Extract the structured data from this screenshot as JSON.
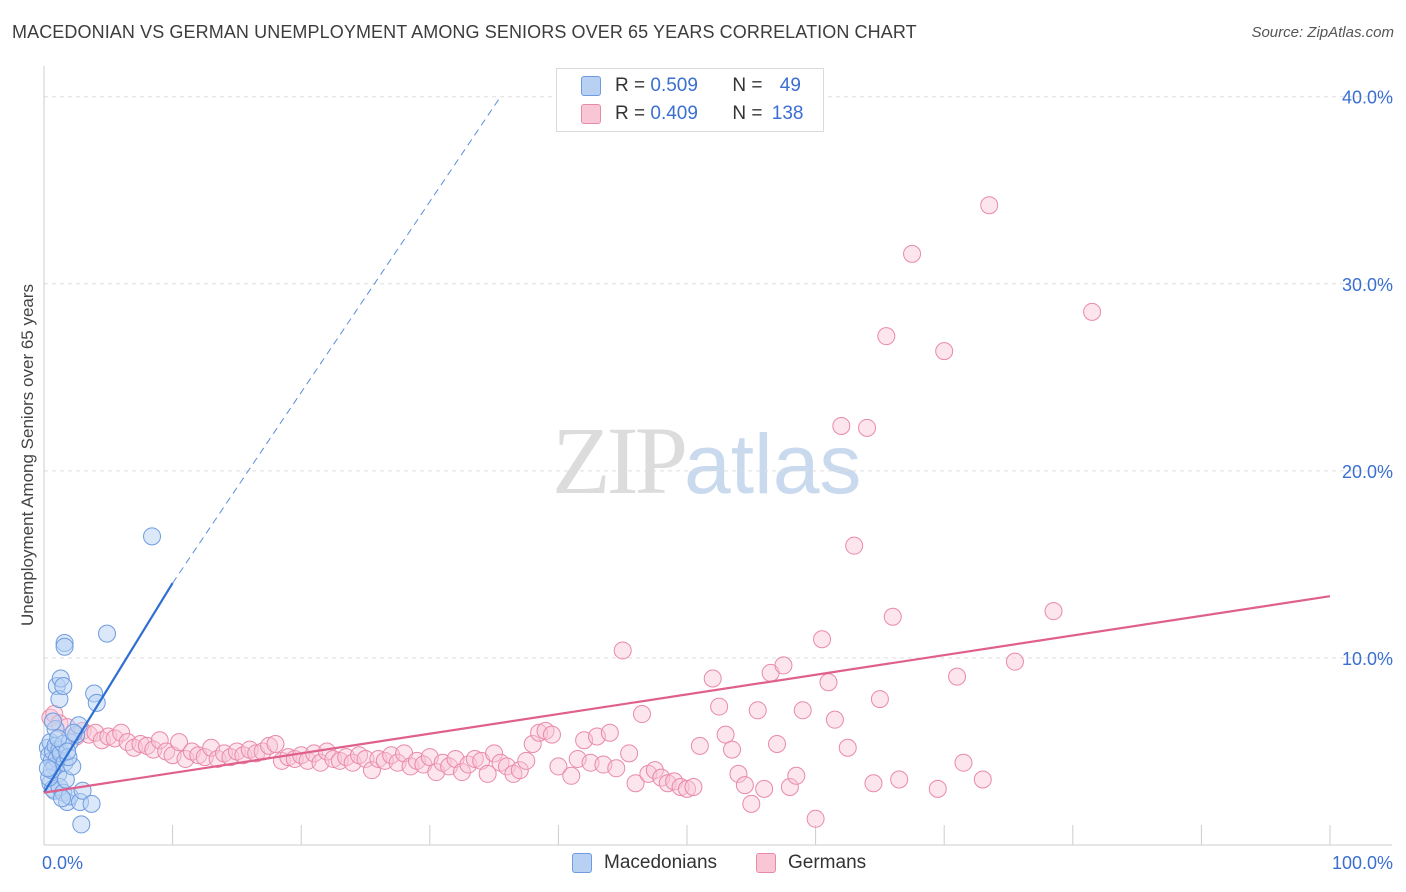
{
  "header": {
    "title": "MACEDONIAN VS GERMAN UNEMPLOYMENT AMONG SENIORS OVER 65 YEARS CORRELATION CHART",
    "source": "Source: ZipAtlas.com"
  },
  "legend": {
    "row1": {
      "r_label": "R = ",
      "r_value": "0.509",
      "n_label": "N = ",
      "n_value": "49"
    },
    "row2": {
      "r_label": "R = ",
      "r_value": "0.409",
      "n_label": "N = ",
      "n_value": "138"
    }
  },
  "watermark": {
    "zip": "ZIP",
    "atlas": "atlas"
  },
  "colors": {
    "blue_fill": "#b8d1f3",
    "blue_stroke": "#6f9be0",
    "blue_line": "#2f6fd1",
    "pink_fill": "#f9c6d6",
    "pink_stroke": "#e98aa8",
    "pink_line": "#e0608c",
    "axis_text": "#3a6fd1",
    "grid": "#dddddd"
  },
  "chart_data": {
    "type": "scatter",
    "title": "MACEDONIAN VS GERMAN UNEMPLOYMENT AMONG SENIORS OVER 65 YEARS CORRELATION CHART",
    "xlabel": "",
    "ylabel": "Unemployment Among Seniors over 65 years",
    "xlim": [
      0,
      100
    ],
    "ylim": [
      0,
      41
    ],
    "x_tick_labels": {
      "left": "0.0%",
      "right": "100.0%"
    },
    "y_ticks": [
      10,
      20,
      30,
      40
    ],
    "y_tick_labels": [
      "10.0%",
      "20.0%",
      "30.0%",
      "40.0%"
    ],
    "series": [
      {
        "name": "Macedonians",
        "trend": {
          "x0": 0,
          "y0": 2.8,
          "x1": 10,
          "y1": 14.0,
          "extend_to_x": 35.5,
          "extend_to_y": 40.0
        },
        "points": [
          [
            0.3,
            5.2
          ],
          [
            0.4,
            4.8
          ],
          [
            0.5,
            5.5
          ],
          [
            0.6,
            4.5
          ],
          [
            0.7,
            5.0
          ],
          [
            0.8,
            4.2
          ],
          [
            0.9,
            5.3
          ],
          [
            1.0,
            4.6
          ],
          [
            1.1,
            3.8
          ],
          [
            1.2,
            5.1
          ],
          [
            1.3,
            4.9
          ],
          [
            1.5,
            5.4
          ],
          [
            1.6,
            4.4
          ],
          [
            0.5,
            3.3
          ],
          [
            0.7,
            3.0
          ],
          [
            0.8,
            2.9
          ],
          [
            1.2,
            3.1
          ],
          [
            1.5,
            2.8
          ],
          [
            1.7,
            3.5
          ],
          [
            0.9,
            6.2
          ],
          [
            0.7,
            6.6
          ],
          [
            1.0,
            8.5
          ],
          [
            1.2,
            7.8
          ],
          [
            1.3,
            8.9
          ],
          [
            1.5,
            8.5
          ],
          [
            1.6,
            10.8
          ],
          [
            1.6,
            10.6
          ],
          [
            1.8,
            2.3
          ],
          [
            2.0,
            2.6
          ],
          [
            2.2,
            4.2
          ],
          [
            2.0,
            5.5
          ],
          [
            2.5,
            5.9
          ],
          [
            2.7,
            6.4
          ],
          [
            2.8,
            2.3
          ],
          [
            3.0,
            2.9
          ],
          [
            2.9,
            1.1
          ],
          [
            3.7,
            2.2
          ],
          [
            3.9,
            8.1
          ],
          [
            4.1,
            7.6
          ],
          [
            4.9,
            11.3
          ],
          [
            8.4,
            16.5
          ],
          [
            0.4,
            3.6
          ],
          [
            0.6,
            4.0
          ],
          [
            1.4,
            2.5
          ],
          [
            1.9,
            4.7
          ],
          [
            0.3,
            4.1
          ],
          [
            1.1,
            5.7
          ],
          [
            1.8,
            5.0
          ],
          [
            2.3,
            6.0
          ]
        ]
      },
      {
        "name": "Germans",
        "trend": {
          "x0": 0,
          "y0": 2.8,
          "x1": 100,
          "y1": 13.3
        },
        "points": [
          [
            0.5,
            6.8
          ],
          [
            0.8,
            7.0
          ],
          [
            1.2,
            6.5
          ],
          [
            1.8,
            6.3
          ],
          [
            2.5,
            5.8
          ],
          [
            3.0,
            6.1
          ],
          [
            3.5,
            5.9
          ],
          [
            4.0,
            6.0
          ],
          [
            4.5,
            5.6
          ],
          [
            5.0,
            5.8
          ],
          [
            5.5,
            5.7
          ],
          [
            6.0,
            6.0
          ],
          [
            6.5,
            5.5
          ],
          [
            7.0,
            5.2
          ],
          [
            7.5,
            5.4
          ],
          [
            8.0,
            5.3
          ],
          [
            8.5,
            5.1
          ],
          [
            9.0,
            5.6
          ],
          [
            9.5,
            5.0
          ],
          [
            10.0,
            4.8
          ],
          [
            10.5,
            5.5
          ],
          [
            11.0,
            4.6
          ],
          [
            11.5,
            5.0
          ],
          [
            12.0,
            4.8
          ],
          [
            12.5,
            4.7
          ],
          [
            13.0,
            5.2
          ],
          [
            13.5,
            4.6
          ],
          [
            14.0,
            4.9
          ],
          [
            14.5,
            4.7
          ],
          [
            15.0,
            5.0
          ],
          [
            15.5,
            4.8
          ],
          [
            16.0,
            5.1
          ],
          [
            16.5,
            4.9
          ],
          [
            17.0,
            5.0
          ],
          [
            17.5,
            5.3
          ],
          [
            18.0,
            5.4
          ],
          [
            18.5,
            4.5
          ],
          [
            19.0,
            4.7
          ],
          [
            19.5,
            4.6
          ],
          [
            20.0,
            4.8
          ],
          [
            20.5,
            4.5
          ],
          [
            21.0,
            4.9
          ],
          [
            21.5,
            4.4
          ],
          [
            22.0,
            5.0
          ],
          [
            22.5,
            4.6
          ],
          [
            23.0,
            4.5
          ],
          [
            23.5,
            4.7
          ],
          [
            24.0,
            4.4
          ],
          [
            24.5,
            4.8
          ],
          [
            25.0,
            4.6
          ],
          [
            25.5,
            4.0
          ],
          [
            26.0,
            4.6
          ],
          [
            26.5,
            4.5
          ],
          [
            27.0,
            4.8
          ],
          [
            27.5,
            4.4
          ],
          [
            28.0,
            4.9
          ],
          [
            28.5,
            4.2
          ],
          [
            29.0,
            4.5
          ],
          [
            29.5,
            4.3
          ],
          [
            30.0,
            4.7
          ],
          [
            30.5,
            3.9
          ],
          [
            31.0,
            4.4
          ],
          [
            31.5,
            4.2
          ],
          [
            32.0,
            4.6
          ],
          [
            32.5,
            3.9
          ],
          [
            33.0,
            4.3
          ],
          [
            33.5,
            4.6
          ],
          [
            34.0,
            4.5
          ],
          [
            34.5,
            3.8
          ],
          [
            35.0,
            4.9
          ],
          [
            35.5,
            4.4
          ],
          [
            36.0,
            4.2
          ],
          [
            36.5,
            3.8
          ],
          [
            37.0,
            4.0
          ],
          [
            37.5,
            4.5
          ],
          [
            38.0,
            5.4
          ],
          [
            38.5,
            6.0
          ],
          [
            39.0,
            6.1
          ],
          [
            39.5,
            5.9
          ],
          [
            40.0,
            4.2
          ],
          [
            41.0,
            3.7
          ],
          [
            41.5,
            4.6
          ],
          [
            42.0,
            5.6
          ],
          [
            42.5,
            4.4
          ],
          [
            43.0,
            5.8
          ],
          [
            43.5,
            4.3
          ],
          [
            44.0,
            6.0
          ],
          [
            44.5,
            4.1
          ],
          [
            45.0,
            10.4
          ],
          [
            45.5,
            4.9
          ],
          [
            46.0,
            3.3
          ],
          [
            46.5,
            7.0
          ],
          [
            47.0,
            3.8
          ],
          [
            47.5,
            4.0
          ],
          [
            48.0,
            3.6
          ],
          [
            48.5,
            3.3
          ],
          [
            49.0,
            3.4
          ],
          [
            49.5,
            3.1
          ],
          [
            50.0,
            3.0
          ],
          [
            50.5,
            3.1
          ],
          [
            51.0,
            5.3
          ],
          [
            52.0,
            8.9
          ],
          [
            52.5,
            7.4
          ],
          [
            53.0,
            5.9
          ],
          [
            53.5,
            5.1
          ],
          [
            54.0,
            3.8
          ],
          [
            54.5,
            3.2
          ],
          [
            55.0,
            2.2
          ],
          [
            55.5,
            7.2
          ],
          [
            56.0,
            3.0
          ],
          [
            56.5,
            9.2
          ],
          [
            57.0,
            5.4
          ],
          [
            57.5,
            9.6
          ],
          [
            58.0,
            3.1
          ],
          [
            58.5,
            3.7
          ],
          [
            59.0,
            7.2
          ],
          [
            60.0,
            1.4
          ],
          [
            60.5,
            11.0
          ],
          [
            61.0,
            8.7
          ],
          [
            61.5,
            6.7
          ],
          [
            62.0,
            22.4
          ],
          [
            62.5,
            5.2
          ],
          [
            63.0,
            16.0
          ],
          [
            64.0,
            22.3
          ],
          [
            64.5,
            3.3
          ],
          [
            65.0,
            7.8
          ],
          [
            65.5,
            27.2
          ],
          [
            66.0,
            12.2
          ],
          [
            66.5,
            3.5
          ],
          [
            67.5,
            31.6
          ],
          [
            69.5,
            3.0
          ],
          [
            70.0,
            26.4
          ],
          [
            71.0,
            9.0
          ],
          [
            71.5,
            4.4
          ],
          [
            73.0,
            3.5
          ],
          [
            73.5,
            34.2
          ],
          [
            75.5,
            9.8
          ],
          [
            78.5,
            12.5
          ],
          [
            81.5,
            28.5
          ]
        ]
      }
    ],
    "legend_entries": [
      "Macedonians",
      "Germans"
    ]
  },
  "bottom_legend": {
    "series1": "Macedonians",
    "series2": "Germans"
  }
}
